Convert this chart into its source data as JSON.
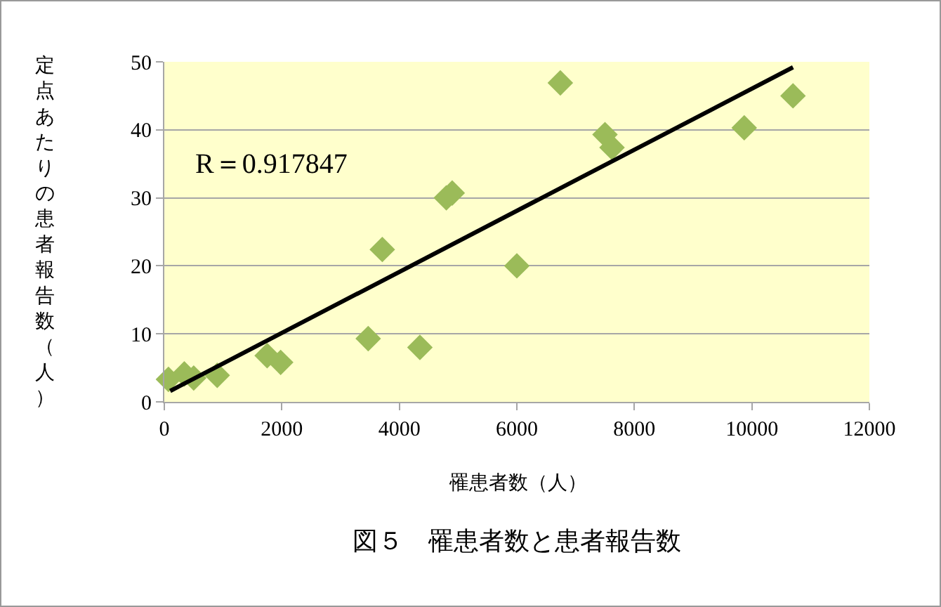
{
  "chart_data": {
    "type": "scatter",
    "title": "図５　罹患者数と患者報告数",
    "xlabel": "罹患者数（人）",
    "ylabel": "定点あたりの患者報告数（人）",
    "annotations": [
      "R＝0.917847"
    ],
    "xlim": [
      0,
      12000
    ],
    "xticks": [
      0,
      2000,
      4000,
      6000,
      8000,
      10000,
      12000
    ],
    "ylim": [
      0,
      50
    ],
    "yticks": [
      0,
      10,
      20,
      30,
      40,
      50
    ],
    "grid": "y",
    "marker": "diamond",
    "series": [
      {
        "color": "#9bbb59",
        "x": [
          70,
          340,
          500,
          900,
          1750,
          1980,
          3470,
          3710,
          4350,
          4800,
          4900,
          6000,
          6740,
          7500,
          7620,
          9870,
          10700
        ],
        "values": [
          3.3,
          4.1,
          3.5,
          3.9,
          6.8,
          5.8,
          9.3,
          22.4,
          8.0,
          30.0,
          30.7,
          20.0,
          46.9,
          39.3,
          37.4,
          40.3,
          45.0
        ]
      },
      {
        "type": "line",
        "color": "#000000",
        "marker": "none",
        "x": [
          100,
          10700
        ],
        "values": [
          1.6,
          49.2
        ]
      }
    ]
  }
}
